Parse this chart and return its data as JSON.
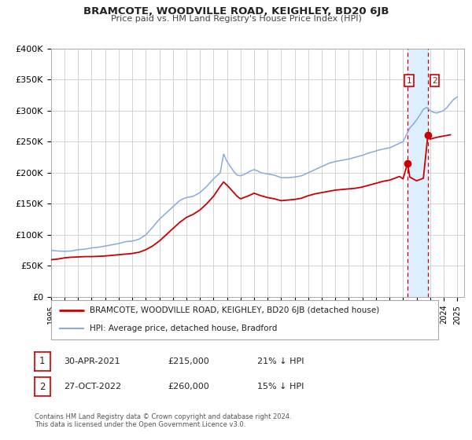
{
  "title": "BRAMCOTE, WOODVILLE ROAD, KEIGHLEY, BD20 6JB",
  "subtitle": "Price paid vs. HM Land Registry's House Price Index (HPI)",
  "ylim": [
    0,
    400000
  ],
  "yticks": [
    0,
    50000,
    100000,
    150000,
    200000,
    250000,
    300000,
    350000,
    400000
  ],
  "ytick_labels": [
    "£0",
    "£50K",
    "£100K",
    "£150K",
    "£200K",
    "£250K",
    "£300K",
    "£350K",
    "£400K"
  ],
  "xlim_start": 1995.0,
  "xlim_end": 2025.5,
  "xticks": [
    1995,
    1996,
    1997,
    1998,
    1999,
    2000,
    2001,
    2002,
    2003,
    2004,
    2005,
    2006,
    2007,
    2008,
    2009,
    2010,
    2011,
    2012,
    2013,
    2014,
    2015,
    2016,
    2017,
    2018,
    2019,
    2020,
    2021,
    2022,
    2023,
    2024,
    2025
  ],
  "price_color": "#cc0000",
  "hpi_color": "#88aadd",
  "point1_x": 2021.33,
  "point1_y": 215000,
  "point2_x": 2022.83,
  "point2_y": 260000,
  "shade_x1": 2021.33,
  "shade_x2": 2022.83,
  "shade_color": "#ddeeff",
  "vline_color": "#cc0000",
  "label1": "1",
  "label2": "2",
  "legend1_label": "BRAMCOTE, WOODVILLE ROAD, KEIGHLEY, BD20 6JB (detached house)",
  "legend2_label": "HPI: Average price, detached house, Bradford",
  "table_row1": [
    "1",
    "30-APR-2021",
    "£215,000",
    "21% ↓ HPI"
  ],
  "table_row2": [
    "2",
    "27-OCT-2022",
    "£260,000",
    "15% ↓ HPI"
  ],
  "footnote1": "Contains HM Land Registry data © Crown copyright and database right 2024.",
  "footnote2": "This data is licensed under the Open Government Licence v3.0.",
  "bg_color": "#ffffff",
  "grid_color": "#cccccc",
  "hpi_data": [
    [
      1995.0,
      75000
    ],
    [
      1995.25,
      74500
    ],
    [
      1995.5,
      74000
    ],
    [
      1995.75,
      73800
    ],
    [
      1996.0,
      73500
    ],
    [
      1996.25,
      73800
    ],
    [
      1996.5,
      74000
    ],
    [
      1996.75,
      75000
    ],
    [
      1997.0,
      76000
    ],
    [
      1997.25,
      76500
    ],
    [
      1997.5,
      77000
    ],
    [
      1997.75,
      78000
    ],
    [
      1998.0,
      79000
    ],
    [
      1998.25,
      79500
    ],
    [
      1998.5,
      80000
    ],
    [
      1998.75,
      81000
    ],
    [
      1999.0,
      82000
    ],
    [
      1999.25,
      83000
    ],
    [
      1999.5,
      84000
    ],
    [
      1999.75,
      85000
    ],
    [
      2000.0,
      86000
    ],
    [
      2000.25,
      87500
    ],
    [
      2000.5,
      89000
    ],
    [
      2000.75,
      89500
    ],
    [
      2001.0,
      90000
    ],
    [
      2001.25,
      91500
    ],
    [
      2001.5,
      93000
    ],
    [
      2001.75,
      96500
    ],
    [
      2002.0,
      100000
    ],
    [
      2002.25,
      106000
    ],
    [
      2002.5,
      112000
    ],
    [
      2002.75,
      118500
    ],
    [
      2003.0,
      125000
    ],
    [
      2003.25,
      130000
    ],
    [
      2003.5,
      135000
    ],
    [
      2003.75,
      140000
    ],
    [
      2004.0,
      145000
    ],
    [
      2004.25,
      150000
    ],
    [
      2004.5,
      155000
    ],
    [
      2004.75,
      158000
    ],
    [
      2005.0,
      160000
    ],
    [
      2005.25,
      161000
    ],
    [
      2005.5,
      162000
    ],
    [
      2005.75,
      165000
    ],
    [
      2006.0,
      168000
    ],
    [
      2006.25,
      173000
    ],
    [
      2006.5,
      178000
    ],
    [
      2006.75,
      184000
    ],
    [
      2007.0,
      190000
    ],
    [
      2007.25,
      195000
    ],
    [
      2007.5,
      200000
    ],
    [
      2007.75,
      230000
    ],
    [
      2008.0,
      218000
    ],
    [
      2008.25,
      210000
    ],
    [
      2008.5,
      202000
    ],
    [
      2008.75,
      196000
    ],
    [
      2009.0,
      195000
    ],
    [
      2009.25,
      197000
    ],
    [
      2009.5,
      200000
    ],
    [
      2009.75,
      203000
    ],
    [
      2010.0,
      205000
    ],
    [
      2010.25,
      203000
    ],
    [
      2010.5,
      200000
    ],
    [
      2010.75,
      199000
    ],
    [
      2011.0,
      198000
    ],
    [
      2011.25,
      197000
    ],
    [
      2011.5,
      196000
    ],
    [
      2011.75,
      194000
    ],
    [
      2012.0,
      192000
    ],
    [
      2012.25,
      192000
    ],
    [
      2012.5,
      192000
    ],
    [
      2012.75,
      192500
    ],
    [
      2013.0,
      193000
    ],
    [
      2013.25,
      194000
    ],
    [
      2013.5,
      195000
    ],
    [
      2013.75,
      197500
    ],
    [
      2014.0,
      200000
    ],
    [
      2014.25,
      202500
    ],
    [
      2014.5,
      205000
    ],
    [
      2014.75,
      207500
    ],
    [
      2015.0,
      210000
    ],
    [
      2015.25,
      212500
    ],
    [
      2015.5,
      215000
    ],
    [
      2015.75,
      216500
    ],
    [
      2016.0,
      218000
    ],
    [
      2016.25,
      219000
    ],
    [
      2016.5,
      220000
    ],
    [
      2016.75,
      221000
    ],
    [
      2017.0,
      222000
    ],
    [
      2017.25,
      223500
    ],
    [
      2017.5,
      225000
    ],
    [
      2017.75,
      226500
    ],
    [
      2018.0,
      228000
    ],
    [
      2018.25,
      230000
    ],
    [
      2018.5,
      232000
    ],
    [
      2018.75,
      233500
    ],
    [
      2019.0,
      235000
    ],
    [
      2019.25,
      236500
    ],
    [
      2019.5,
      238000
    ],
    [
      2019.75,
      239000
    ],
    [
      2020.0,
      240000
    ],
    [
      2020.25,
      242500
    ],
    [
      2020.5,
      245000
    ],
    [
      2020.75,
      247500
    ],
    [
      2021.0,
      250000
    ],
    [
      2021.25,
      261000
    ],
    [
      2021.5,
      272000
    ],
    [
      2021.75,
      278000
    ],
    [
      2022.0,
      285000
    ],
    [
      2022.25,
      293000
    ],
    [
      2022.5,
      302000
    ],
    [
      2022.75,
      305000
    ],
    [
      2023.0,
      300000
    ],
    [
      2023.25,
      297000
    ],
    [
      2023.5,
      296000
    ],
    [
      2023.75,
      298000
    ],
    [
      2024.0,
      300000
    ],
    [
      2024.25,
      305000
    ],
    [
      2024.5,
      312000
    ],
    [
      2024.75,
      318000
    ],
    [
      2025.0,
      322000
    ]
  ],
  "price_data": [
    [
      1995.0,
      60000
    ],
    [
      1995.25,
      60500
    ],
    [
      1995.5,
      61000
    ],
    [
      1995.75,
      62000
    ],
    [
      1996.0,
      63000
    ],
    [
      1996.25,
      63500
    ],
    [
      1996.5,
      64000
    ],
    [
      1996.75,
      64200
    ],
    [
      1997.0,
      64500
    ],
    [
      1997.25,
      64700
    ],
    [
      1997.5,
      65000
    ],
    [
      1997.75,
      65000
    ],
    [
      1998.0,
      65000
    ],
    [
      1998.25,
      65200
    ],
    [
      1998.5,
      65500
    ],
    [
      1998.75,
      65700
    ],
    [
      1999.0,
      66000
    ],
    [
      1999.25,
      66500
    ],
    [
      1999.5,
      67000
    ],
    [
      1999.75,
      67500
    ],
    [
      2000.0,
      68000
    ],
    [
      2000.25,
      68500
    ],
    [
      2000.5,
      69000
    ],
    [
      2000.75,
      69500
    ],
    [
      2001.0,
      70000
    ],
    [
      2001.25,
      71000
    ],
    [
      2001.5,
      72000
    ],
    [
      2001.75,
      74000
    ],
    [
      2002.0,
      76000
    ],
    [
      2002.25,
      79000
    ],
    [
      2002.5,
      82000
    ],
    [
      2002.75,
      86000
    ],
    [
      2003.0,
      90000
    ],
    [
      2003.25,
      95000
    ],
    [
      2003.5,
      100000
    ],
    [
      2003.75,
      105000
    ],
    [
      2004.0,
      110000
    ],
    [
      2004.25,
      115000
    ],
    [
      2004.5,
      120000
    ],
    [
      2004.75,
      124000
    ],
    [
      2005.0,
      128000
    ],
    [
      2005.25,
      130500
    ],
    [
      2005.5,
      133000
    ],
    [
      2005.75,
      136500
    ],
    [
      2006.0,
      140000
    ],
    [
      2006.25,
      145000
    ],
    [
      2006.5,
      150000
    ],
    [
      2006.75,
      156000
    ],
    [
      2007.0,
      162000
    ],
    [
      2007.25,
      170000
    ],
    [
      2007.5,
      178000
    ],
    [
      2007.75,
      185000
    ],
    [
      2008.0,
      180000
    ],
    [
      2008.25,
      174000
    ],
    [
      2008.5,
      168000
    ],
    [
      2008.75,
      162000
    ],
    [
      2009.0,
      158000
    ],
    [
      2009.25,
      160000
    ],
    [
      2009.5,
      162000
    ],
    [
      2009.75,
      164500
    ],
    [
      2010.0,
      167000
    ],
    [
      2010.25,
      165000
    ],
    [
      2010.5,
      163000
    ],
    [
      2010.75,
      161500
    ],
    [
      2011.0,
      160000
    ],
    [
      2011.25,
      159000
    ],
    [
      2011.5,
      158000
    ],
    [
      2011.75,
      156500
    ],
    [
      2012.0,
      155000
    ],
    [
      2012.25,
      155500
    ],
    [
      2012.5,
      156000
    ],
    [
      2012.75,
      156500
    ],
    [
      2013.0,
      157000
    ],
    [
      2013.25,
      158000
    ],
    [
      2013.5,
      159000
    ],
    [
      2013.75,
      161000
    ],
    [
      2014.0,
      163000
    ],
    [
      2014.25,
      164500
    ],
    [
      2014.5,
      166000
    ],
    [
      2014.75,
      167000
    ],
    [
      2015.0,
      168000
    ],
    [
      2015.25,
      169000
    ],
    [
      2015.5,
      170000
    ],
    [
      2015.75,
      171000
    ],
    [
      2016.0,
      172000
    ],
    [
      2016.25,
      172500
    ],
    [
      2016.5,
      173000
    ],
    [
      2016.75,
      173500
    ],
    [
      2017.0,
      174000
    ],
    [
      2017.25,
      174500
    ],
    [
      2017.5,
      175000
    ],
    [
      2017.75,
      176000
    ],
    [
      2018.0,
      177000
    ],
    [
      2018.25,
      178500
    ],
    [
      2018.5,
      180000
    ],
    [
      2018.75,
      181500
    ],
    [
      2019.0,
      183000
    ],
    [
      2019.25,
      184500
    ],
    [
      2019.5,
      186000
    ],
    [
      2019.75,
      187000
    ],
    [
      2020.0,
      188000
    ],
    [
      2020.25,
      190000
    ],
    [
      2020.5,
      192000
    ],
    [
      2020.75,
      194000
    ],
    [
      2021.0,
      190000
    ],
    [
      2021.33,
      215000
    ],
    [
      2021.5,
      193000
    ],
    [
      2022.0,
      187000
    ],
    [
      2022.5,
      191000
    ],
    [
      2022.83,
      260000
    ],
    [
      2023.0,
      254000
    ],
    [
      2023.5,
      257000
    ],
    [
      2024.0,
      259000
    ],
    [
      2024.5,
      261000
    ]
  ]
}
